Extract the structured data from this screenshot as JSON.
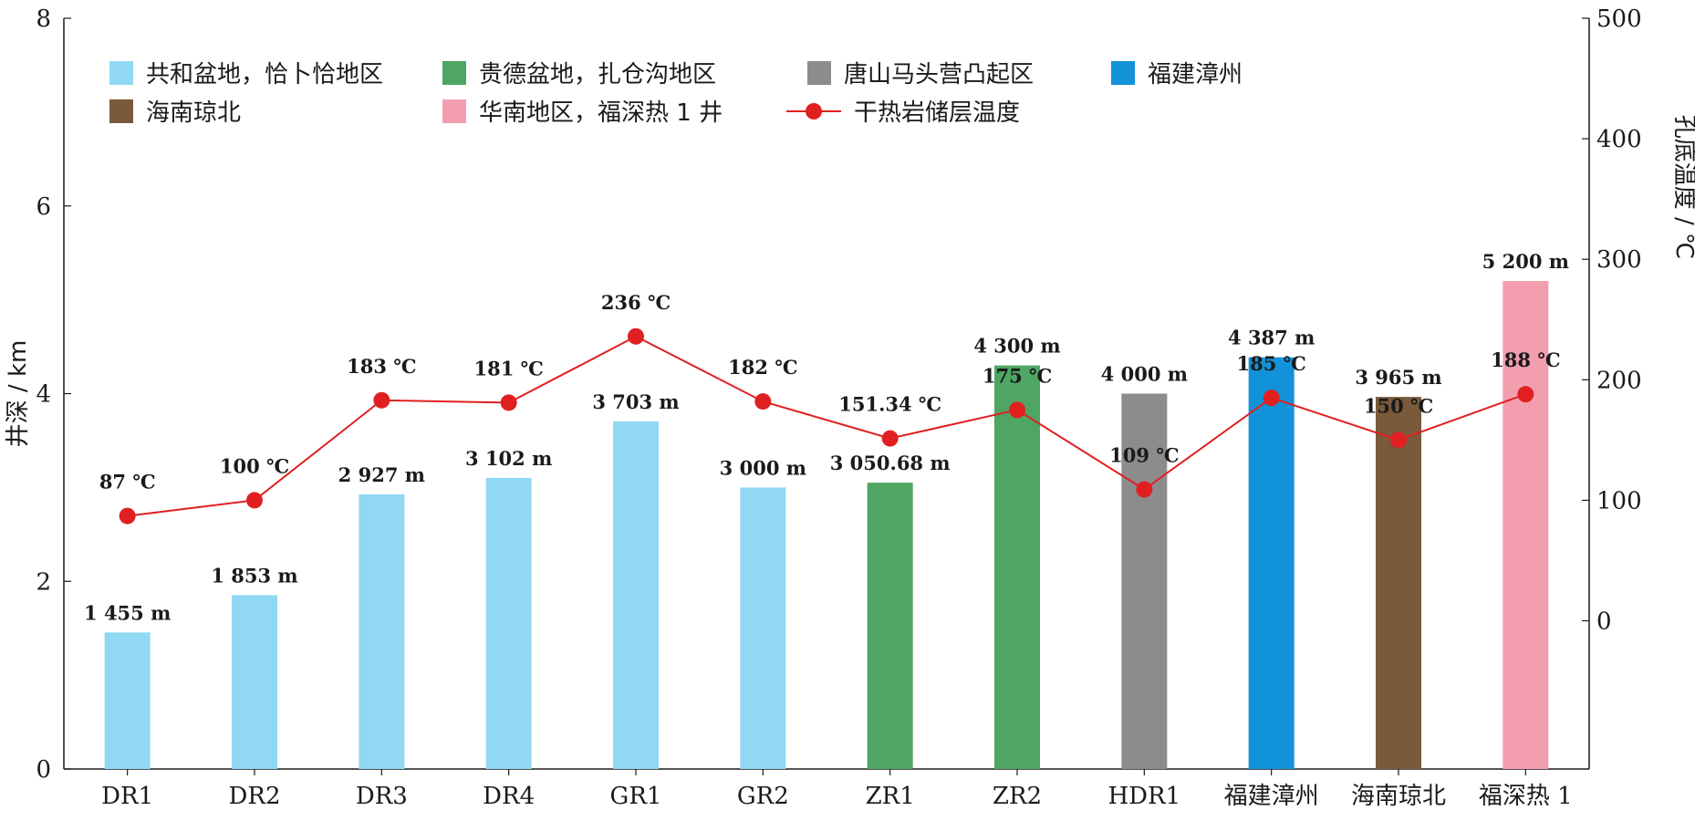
{
  "chart_data": {
    "type": "bar",
    "categories": [
      "DR1",
      "DR2",
      "DR3",
      "DR4",
      "GR1",
      "GR2",
      "ZR1",
      "ZR2",
      "HDR1",
      "福建漳州",
      "海南琼北",
      "福深热 1"
    ],
    "depth_km": [
      1.455,
      1.853,
      2.927,
      3.102,
      3.703,
      3.0,
      3.05068,
      4.3,
      4.0,
      4.387,
      3.965,
      5.2
    ],
    "depth_labels": [
      "1 455 m",
      "1 853 m",
      "2 927 m",
      "3 102 m",
      "3 703 m",
      "3 000 m",
      "3 050.68 m",
      "4 300 m",
      "4 000 m",
      "4 387 m",
      "3 965 m",
      "5 200 m"
    ],
    "groups": [
      "共和盆地，恰卜恰地区",
      "共和盆地，恰卜恰地区",
      "共和盆地，恰卜恰地区",
      "共和盆地，恰卜恰地区",
      "共和盆地，恰卜恰地区",
      "共和盆地，恰卜恰地区",
      "贵德盆地，扎仓沟地区",
      "贵德盆地，扎仓沟地区",
      "唐山马头营凸起区",
      "福建漳州",
      "海南琼北",
      "华南地区，福深热 1 井"
    ],
    "temperature_c": [
      87,
      100,
      183,
      181,
      236,
      182,
      151.34,
      175,
      109,
      185,
      150,
      188
    ],
    "temperature_labels": [
      "87 ℃",
      "100 ℃",
      "183 ℃",
      "181 ℃",
      "236 ℃",
      "182 ℃",
      "151.34 ℃",
      "175 ℃",
      "109 ℃",
      "185 ℃",
      "150 ℃",
      "188 ℃"
    ],
    "ylabel_left": "井深 / km",
    "ylabel_right": "孔底温度 / ℃",
    "ylim_left": [
      0,
      8
    ],
    "yticks_left": [
      0,
      2,
      4,
      6,
      8
    ],
    "ylim_right": [
      -123,
      500
    ],
    "yticks_right": [
      0,
      100,
      200,
      300,
      400,
      500
    ],
    "grid": false,
    "legend": {
      "placement": "top-left",
      "items": [
        {
          "label": "共和盆地，恰卜恰地区",
          "color": "#91d8f5",
          "kind": "bar"
        },
        {
          "label": "贵德盆地，扎仓沟地区",
          "color": "#4fa563",
          "kind": "bar"
        },
        {
          "label": "唐山马头营凸起区",
          "color": "#8c8c8c",
          "kind": "bar"
        },
        {
          "label": "福建漳州",
          "color": "#1292d8",
          "kind": "bar"
        },
        {
          "label": "海南琼北",
          "color": "#7a5a3a",
          "kind": "bar"
        },
        {
          "label": "华南地区，福深热 1 井",
          "color": "#f39eaf",
          "kind": "bar"
        },
        {
          "label": "干热岩储层温度",
          "color": "#e02020",
          "kind": "line"
        }
      ]
    },
    "line_color": "#e02020"
  }
}
